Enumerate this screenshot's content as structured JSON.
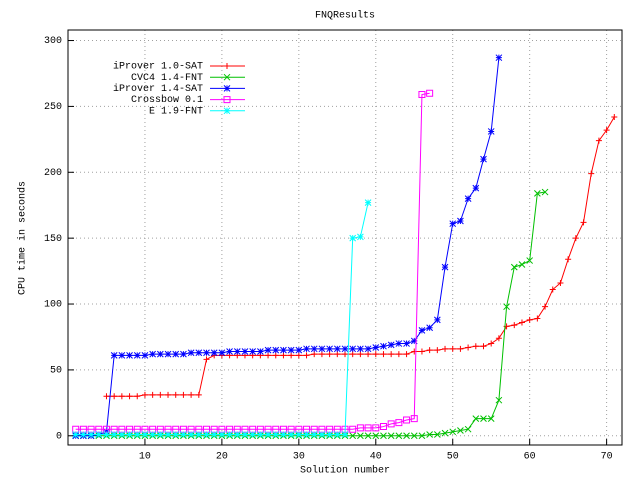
{
  "chart_data": {
    "type": "line",
    "title": "FNQResults",
    "xlabel": "Solution number",
    "ylabel": "CPU time in seconds",
    "x": [
      1,
      2,
      3,
      4,
      5,
      6,
      7,
      8,
      9,
      10,
      11,
      12,
      13,
      14,
      15,
      16,
      17,
      18,
      19,
      20,
      21,
      22,
      23,
      24,
      25,
      26,
      27,
      28,
      29,
      30,
      31,
      32,
      33,
      34,
      35,
      36,
      37,
      38,
      39,
      40,
      41,
      42,
      43,
      44,
      45,
      46,
      47,
      48,
      49,
      50,
      51,
      52,
      53,
      54,
      55,
      56,
      57,
      58,
      59,
      60,
      61,
      62,
      63,
      64,
      65,
      66,
      67,
      68,
      69,
      70,
      71
    ],
    "xlim": [
      0,
      72
    ],
    "xticks": [
      10,
      20,
      30,
      40,
      50,
      60,
      70
    ],
    "ylim": [
      -7,
      308
    ],
    "yticks": [
      0,
      50,
      100,
      150,
      200,
      250,
      300
    ],
    "grid": true,
    "legend": "upper left",
    "series": [
      {
        "name": "iProver 1.0-SAT",
        "color": "#ff0000",
        "marker": "plus",
        "values": [
          null,
          null,
          null,
          null,
          30,
          30,
          30,
          30,
          30,
          31,
          31,
          31,
          31,
          31,
          31,
          31,
          31,
          58,
          61,
          61,
          61,
          61,
          61,
          61,
          61,
          61,
          61,
          61,
          61,
          61,
          61,
          62,
          62,
          62,
          62,
          62,
          62,
          62,
          62,
          62,
          62,
          62,
          62,
          62,
          64,
          64,
          65,
          65,
          66,
          66,
          66,
          67,
          68,
          68,
          70,
          74,
          83,
          84,
          86,
          88,
          89,
          98,
          111,
          116,
          134,
          150,
          162,
          199,
          224,
          232,
          242
        ]
      },
      {
        "name": "CVC4 1.4-FNT",
        "color": "#00c000",
        "marker": "cross",
        "values": [
          0,
          0,
          0,
          0,
          0,
          0,
          0,
          0,
          0,
          0,
          0,
          0,
          0,
          0,
          0,
          0,
          0,
          0,
          0,
          0,
          0,
          0,
          0,
          0,
          0,
          0,
          0,
          0,
          0,
          0,
          0,
          0,
          0,
          0,
          0,
          0,
          0,
          0,
          0,
          0,
          0,
          0,
          0,
          0,
          0,
          0,
          1,
          1,
          2,
          3,
          4,
          5,
          13,
          13,
          13,
          27,
          98,
          128,
          130,
          133,
          184,
          185,
          null,
          null,
          null,
          null,
          null,
          null,
          null,
          null,
          null
        ]
      },
      {
        "name": "iProver 1.4-SAT",
        "color": "#0000ff",
        "marker": "star",
        "values": [
          0,
          0,
          0,
          1,
          3,
          61,
          61,
          61,
          61,
          61,
          62,
          62,
          62,
          62,
          62,
          63,
          63,
          63,
          63,
          63,
          64,
          64,
          64,
          64,
          64,
          65,
          65,
          65,
          65,
          65,
          66,
          66,
          66,
          66,
          66,
          66,
          66,
          66,
          66,
          67,
          68,
          69,
          70,
          70,
          72,
          80,
          82,
          88,
          128,
          161,
          163,
          180,
          188,
          210,
          231,
          287,
          null,
          null,
          null,
          null,
          null,
          null,
          null,
          null,
          null,
          null,
          null,
          null,
          null,
          null,
          null
        ]
      },
      {
        "name": "Crossbow 0.1",
        "color": "#ff00ff",
        "marker": "square",
        "values": [
          5,
          5,
          5,
          5,
          5,
          5,
          5,
          5,
          5,
          5,
          5,
          5,
          5,
          5,
          5,
          5,
          5,
          5,
          5,
          5,
          5,
          5,
          5,
          5,
          5,
          5,
          5,
          5,
          5,
          5,
          5,
          5,
          5,
          5,
          5,
          5,
          5,
          6,
          6,
          6,
          7,
          9,
          10,
          12,
          13,
          259,
          260,
          null,
          null,
          null,
          null,
          null,
          null,
          null,
          null,
          null,
          null,
          null,
          null,
          null,
          null,
          null,
          null,
          null,
          null,
          null,
          null,
          null,
          null,
          null,
          null
        ]
      },
      {
        "name": "E 1.9-FNT",
        "color": "#00ffff",
        "marker": "star",
        "values": [
          1,
          1,
          1,
          1,
          1,
          1,
          1,
          1,
          1,
          1,
          1,
          1,
          1,
          1,
          1,
          1,
          1,
          1,
          1,
          1,
          1,
          1,
          1,
          1,
          1,
          1,
          1,
          1,
          1,
          1,
          1,
          1,
          1,
          1,
          1,
          1,
          150,
          151,
          177,
          null,
          null,
          null,
          null,
          null,
          null,
          null,
          null,
          null,
          null,
          null,
          null,
          null,
          null,
          null,
          null,
          null,
          null,
          null,
          null,
          null,
          null,
          null,
          null,
          null,
          null,
          null,
          null,
          null,
          null,
          null,
          null
        ]
      }
    ]
  }
}
